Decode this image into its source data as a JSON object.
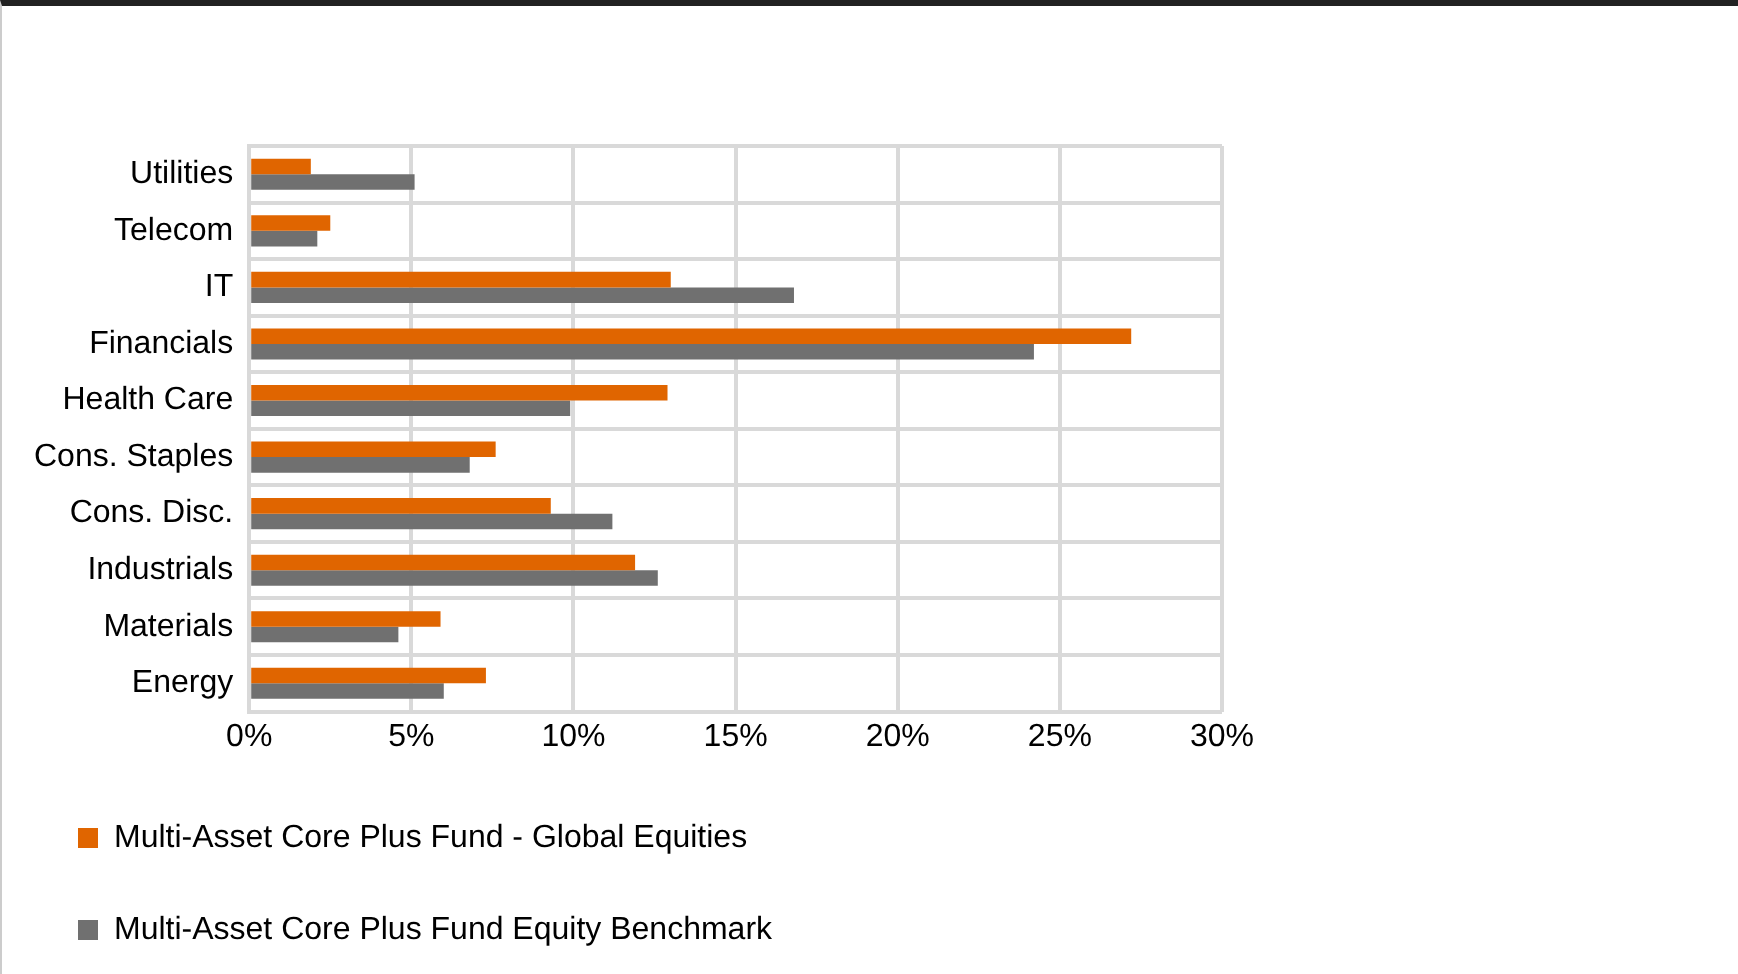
{
  "chart_data": {
    "type": "bar",
    "orientation": "horizontal",
    "categories": [
      "Utilities",
      "Telecom",
      "IT",
      "Financials",
      "Health Care",
      "Cons. Staples",
      "Cons. Disc.",
      "Industrials",
      "Materials",
      "Energy"
    ],
    "series": [
      {
        "name": "Multi-Asset Core Plus Fund - Global Equities",
        "color": "#e06500",
        "values": [
          1.9,
          2.5,
          13.0,
          27.2,
          12.9,
          7.6,
          9.3,
          11.9,
          5.9,
          7.3
        ]
      },
      {
        "name": "Multi-Asset Core Plus Fund Equity Benchmark",
        "color": "#707070",
        "values": [
          5.1,
          2.1,
          16.8,
          24.2,
          9.9,
          6.8,
          11.2,
          12.6,
          4.6,
          6.0
        ]
      }
    ],
    "xlim": [
      0,
      30
    ],
    "xticks": [
      {
        "value": 0,
        "label": "0%"
      },
      {
        "value": 5,
        "label": "5%"
      },
      {
        "value": 10,
        "label": "10%"
      },
      {
        "value": 15,
        "label": "15%"
      },
      {
        "value": 20,
        "label": "20%"
      },
      {
        "value": 25,
        "label": "25%"
      },
      {
        "value": 30,
        "label": "30%"
      }
    ],
    "grid": true,
    "legend": "bottom"
  }
}
